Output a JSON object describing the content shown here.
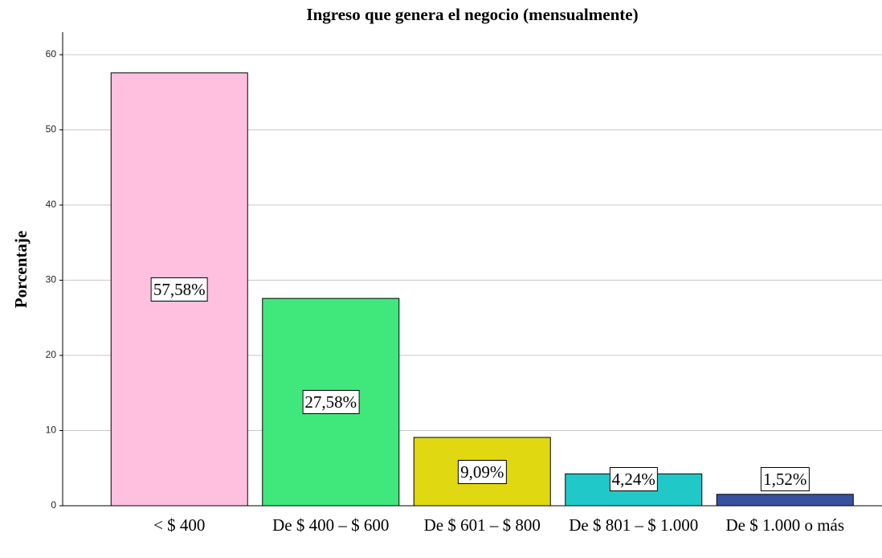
{
  "chart_data": {
    "type": "bar",
    "title": "Ingreso que genera el negocio (mensualmente)",
    "y_label": "Porcentaje",
    "categories": [
      "< $ 400",
      "De $ 400 – $ 600",
      "De $ 601 – $ 800",
      "De $ 801 – $ 1.000",
      "De $ 1.000 o más"
    ],
    "values": [
      57.58,
      27.58,
      9.09,
      4.24,
      1.52
    ],
    "value_labels": [
      "57,58%",
      "27,58%",
      "9,09%",
      "4,24%",
      "1,52%"
    ],
    "colors": [
      "#ffc0e0",
      "#40e87c",
      "#e0d810",
      "#20c8c8",
      "#3850a0"
    ],
    "ylim": [
      0,
      63
    ],
    "yticks": [
      0,
      10,
      20,
      30,
      40,
      50,
      60
    ],
    "grid": true
  }
}
